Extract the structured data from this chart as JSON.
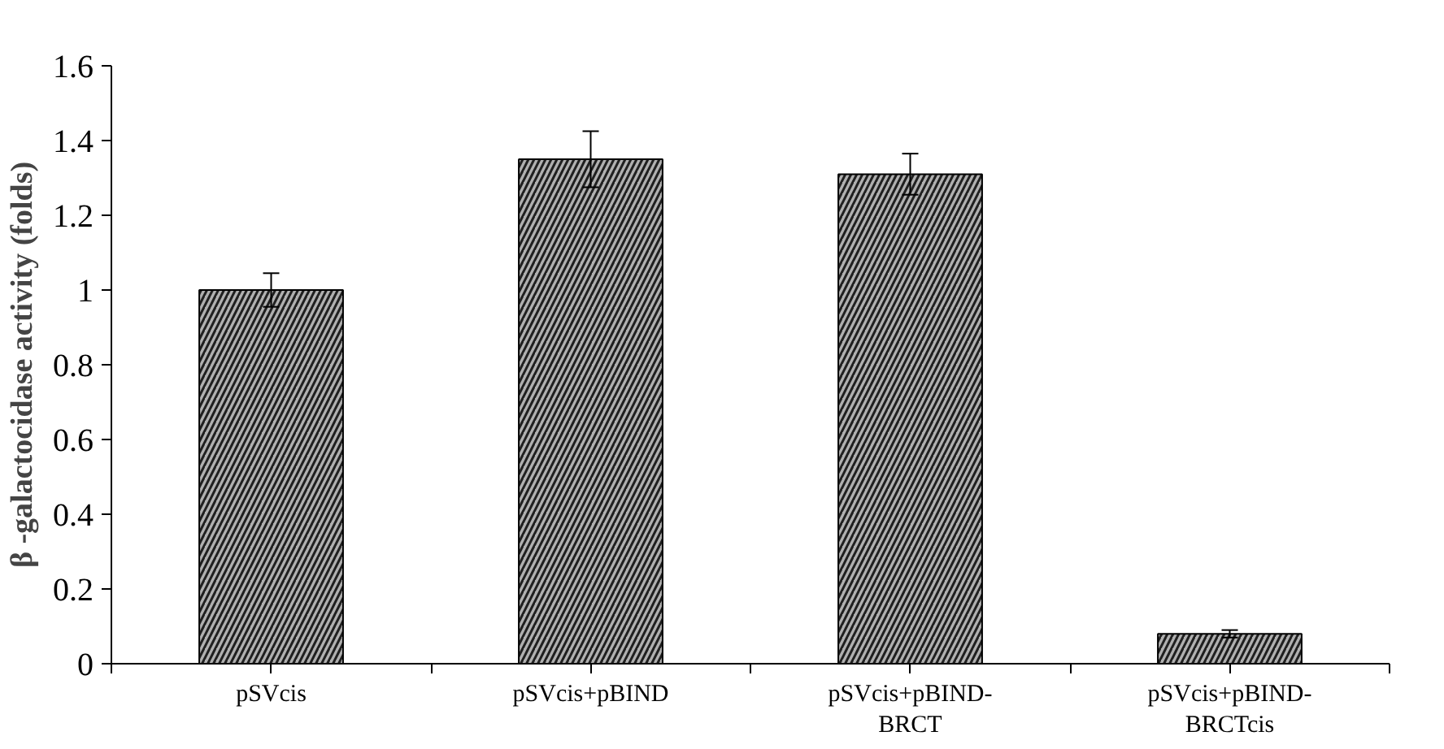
{
  "chart_data": {
    "type": "bar",
    "ylabel": "β -galactocidase activity (folds)",
    "categories": [
      "pSVcis",
      "pSVcis+pBIND",
      "pSVcis+pBIND-\nBRCT",
      "pSVcis+pBIND-\nBRCTcis"
    ],
    "values": [
      1.0,
      1.35,
      1.31,
      0.08
    ],
    "errors": [
      0.045,
      0.075,
      0.055,
      0.01
    ],
    "color": "#b0b0b0",
    "ylim": [
      0,
      1.6
    ],
    "yticks": [
      {
        "value": 0,
        "label": "0"
      },
      {
        "value": 0.2,
        "label": "0.2"
      },
      {
        "value": 0.4,
        "label": "0.4"
      },
      {
        "value": 0.6,
        "label": "0.6"
      },
      {
        "value": 0.8,
        "label": "0.8"
      },
      {
        "value": 1,
        "label": "1"
      },
      {
        "value": 1.2,
        "label": "1.2"
      },
      {
        "value": 1.4,
        "label": "1.4"
      },
      {
        "value": 1.6,
        "label": "1.6"
      }
    ],
    "grid": false
  }
}
